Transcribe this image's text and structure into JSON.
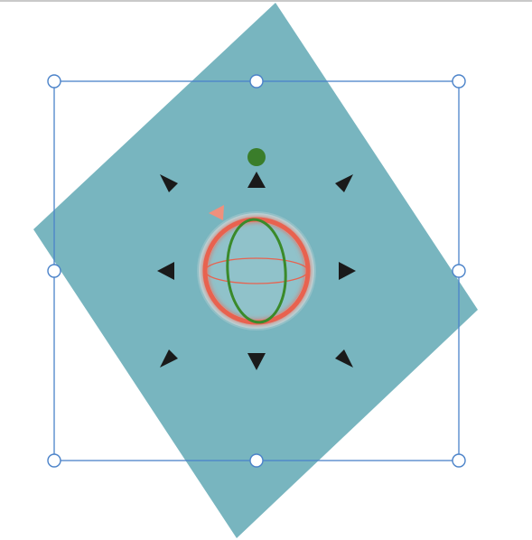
{
  "scene": {
    "shape_color": "#78b5bf",
    "selection_color": "#4a82c9",
    "handle_fill": "#ffffff",
    "move_arrow_color": "#1a1a1a",
    "rotation_dot_color": "#3a7d2a",
    "gizmo_ring_color": "#e8624f",
    "gizmo_meridian_color": "#3a8a2a",
    "gizmo_cursor_color": "#f0907d"
  },
  "icons": {
    "rotate_handle": "rotate-handle-icon",
    "move_arrow": "move-arrow-icon",
    "orbit_gizmo": "orbit-gizmo-icon",
    "resize_handle": "resize-handle-icon"
  }
}
